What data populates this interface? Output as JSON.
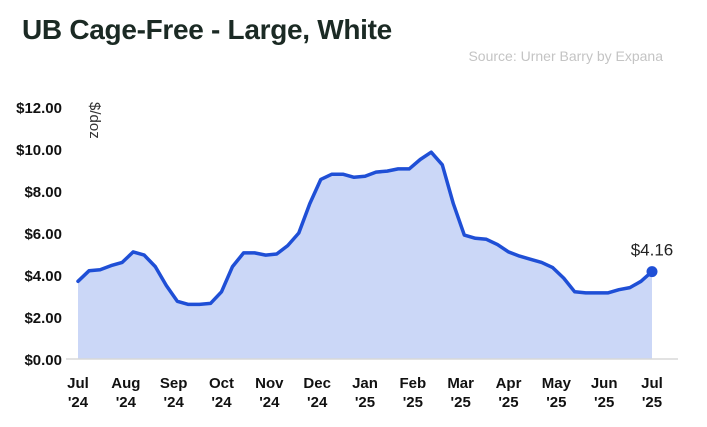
{
  "title": "UB Cage-Free - Large, White",
  "source": "Source: Urner Barry by Expana",
  "chart_data": {
    "type": "area",
    "title": "UB Cage-Free - Large, White",
    "ylabel": "$/doz",
    "ylim": [
      0,
      12
    ],
    "yticks": [
      "$0.00",
      "$2.00",
      "$4.00",
      "$6.00",
      "$8.00",
      "$10.00",
      "$12.00"
    ],
    "ytick_values": [
      0,
      2,
      4,
      6,
      8,
      10,
      12
    ],
    "xtick_labels": [
      {
        "month": "Jul",
        "year": "'24"
      },
      {
        "month": "Aug",
        "year": "'24"
      },
      {
        "month": "Sep",
        "year": "'24"
      },
      {
        "month": "Oct",
        "year": "'24"
      },
      {
        "month": "Nov",
        "year": "'24"
      },
      {
        "month": "Dec",
        "year": "'24"
      },
      {
        "month": "Jan",
        "year": "'25"
      },
      {
        "month": "Feb",
        "year": "'25"
      },
      {
        "month": "Mar",
        "year": "'25"
      },
      {
        "month": "Apr",
        "year": "'25"
      },
      {
        "month": "May",
        "year": "'25"
      },
      {
        "month": "Jun",
        "year": "'25"
      },
      {
        "month": "Jul",
        "year": "'25"
      }
    ],
    "series": [
      {
        "values": [
          3.7,
          4.2,
          4.25,
          4.45,
          4.6,
          5.1,
          4.95,
          4.4,
          3.5,
          2.75,
          2.6,
          2.6,
          2.65,
          3.2,
          4.4,
          5.05,
          5.05,
          4.95,
          5.0,
          5.4,
          6.0,
          7.4,
          8.55,
          8.8,
          8.8,
          8.65,
          8.7,
          8.9,
          8.95,
          9.05,
          9.05,
          9.5,
          9.85,
          9.25,
          7.4,
          5.9,
          5.75,
          5.7,
          5.45,
          5.1,
          4.9,
          4.75,
          4.6,
          4.35,
          3.85,
          3.2,
          3.15,
          3.15,
          3.15,
          3.3,
          3.4,
          3.7,
          4.16
        ]
      }
    ],
    "last_value_label": "$4.16",
    "grid": false,
    "colors": {
      "line": "#1f4fd6",
      "fill": "#cbd7f7",
      "axis": "#d8d8d8"
    }
  }
}
